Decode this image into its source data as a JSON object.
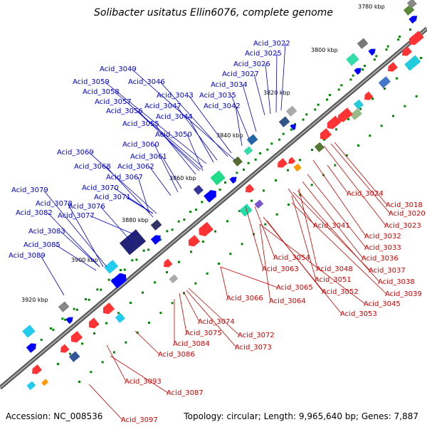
{
  "title": "Solibacter usitatus Ellin6076, complete genome",
  "accession": "Accession: NC_008536",
  "topology": "Topology: circular; Length: 9,965,640 bp; Genes: 7,887",
  "ruler": [
    "3780 kbp",
    "3800 kbp",
    "3820 kbp",
    "3840 kbp",
    "3860 kbp",
    "3880 kbp",
    "3900 kbp",
    "3920 kbp"
  ],
  "upper_labels": [
    "Acid_3022",
    "Acid_3025",
    "Acid_3026",
    "Acid_3027",
    "Acid_3049",
    "Acid_3034",
    "Acid_3046",
    "Acid_3059",
    "Acid_3035",
    "Acid_3043",
    "Acid_3058",
    "Acid_3057",
    "Acid_3047",
    "Acid_3042",
    "Acid_3056",
    "Acid_3044",
    "Acid_3055",
    "Acid_3050",
    "Acid_3060",
    "Acid_3069",
    "Acid_3061",
    "Acid_3068",
    "Acid_3062",
    "Acid_3067",
    "Acid_3070",
    "Acid_3079",
    "Acid_3071",
    "Acid_3078",
    "Acid_3076",
    "Acid_3082",
    "Acid_3077",
    "Acid_3083",
    "Acid_3085",
    "Acid_3089"
  ],
  "lower_labels": [
    "Acid_3024",
    "Acid_3018",
    "Acid_3020",
    "Acid_3023",
    "Acid_3041",
    "Acid_3032",
    "Acid_3033",
    "Acid_3054",
    "Acid_3036",
    "Acid_3063",
    "Acid_3048",
    "Acid_3037",
    "Acid_3051",
    "Acid_3038",
    "Acid_3065",
    "Acid_3052",
    "Acid_3039",
    "Acid_3066",
    "Acid_3064",
    "Acid_3045",
    "Acid_3053",
    "Acid_3074",
    "Acid_3075",
    "Acid_3072",
    "Acid_3084",
    "Acid_3073",
    "Acid_3086",
    "Acid_3093",
    "Acid_3087",
    "Acid_3097"
  ],
  "colors": {
    "label_upper": "#0000cc",
    "label_lower": "#cc0000",
    "backbone": "#888888",
    "forward_strand": "#0000ff",
    "reverse_strand": "#ff0000",
    "green_marker": "#008800"
  }
}
